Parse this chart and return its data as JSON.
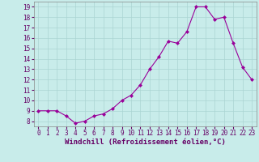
{
  "x": [
    0,
    1,
    2,
    3,
    4,
    5,
    6,
    7,
    8,
    9,
    10,
    11,
    12,
    13,
    14,
    15,
    16,
    17,
    18,
    19,
    20,
    21,
    22,
    23
  ],
  "y": [
    9.0,
    9.0,
    9.0,
    8.5,
    7.8,
    8.0,
    8.5,
    8.7,
    9.2,
    10.0,
    10.5,
    11.5,
    13.0,
    14.2,
    15.7,
    15.5,
    16.6,
    19.0,
    19.0,
    17.8,
    18.0,
    15.5,
    13.2,
    12.0
  ],
  "line_color": "#990099",
  "marker": "D",
  "marker_size": 2,
  "bg_color": "#c8ecea",
  "grid_color": "#aad4d2",
  "xlabel": "Windchill (Refroidissement éolien,°C)",
  "xlim": [
    -0.5,
    23.5
  ],
  "ylim": [
    7.5,
    19.5
  ],
  "yticks": [
    8,
    9,
    10,
    11,
    12,
    13,
    14,
    15,
    16,
    17,
    18,
    19
  ],
  "xticks": [
    0,
    1,
    2,
    3,
    4,
    5,
    6,
    7,
    8,
    9,
    10,
    11,
    12,
    13,
    14,
    15,
    16,
    17,
    18,
    19,
    20,
    21,
    22,
    23
  ],
  "tick_fontsize": 5.5,
  "xlabel_fontsize": 6.5
}
